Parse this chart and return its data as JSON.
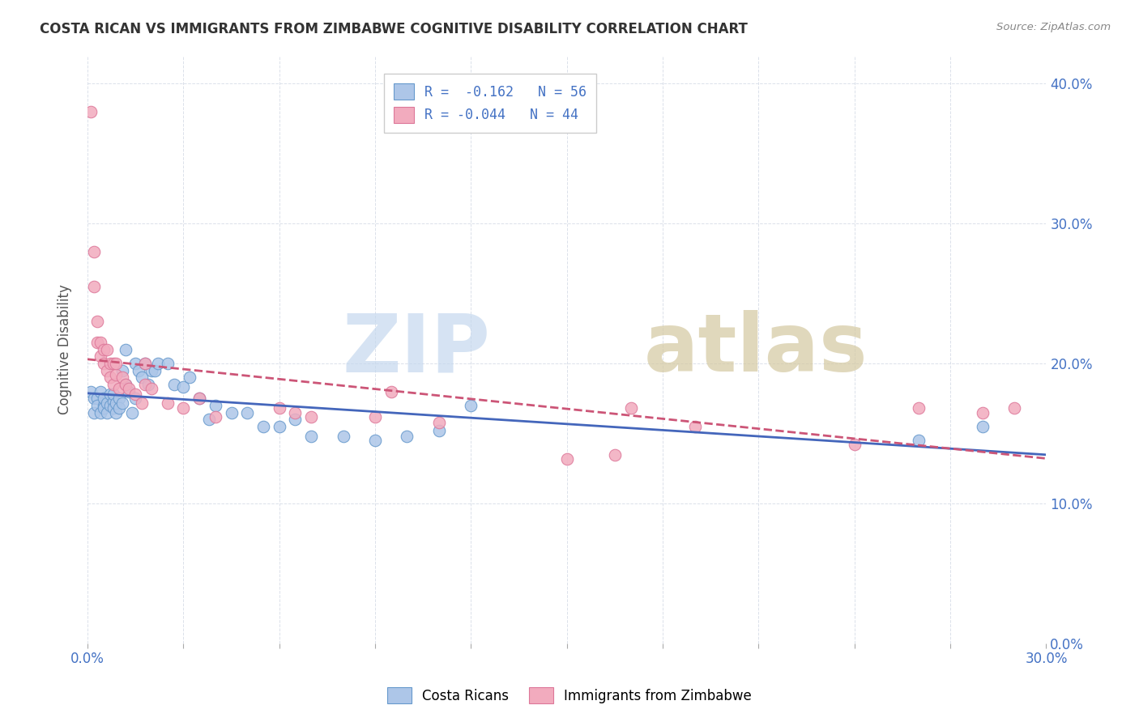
{
  "title": "COSTA RICAN VS IMMIGRANTS FROM ZIMBABWE COGNITIVE DISABILITY CORRELATION CHART",
  "source": "Source: ZipAtlas.com",
  "legend_label1": "Costa Ricans",
  "legend_label2": "Immigrants from Zimbabwe",
  "xlim": [
    0.0,
    0.3
  ],
  "ylim": [
    0.0,
    0.42
  ],
  "color_blue": "#adc6e8",
  "color_pink": "#f2abbe",
  "edge_blue": "#6699cc",
  "edge_pink": "#dd7799",
  "trendline_blue": "#4466bb",
  "trendline_pink": "#cc5577",
  "blue_x": [
    0.001,
    0.002,
    0.002,
    0.003,
    0.003,
    0.004,
    0.004,
    0.005,
    0.005,
    0.005,
    0.006,
    0.006,
    0.007,
    0.007,
    0.008,
    0.008,
    0.008,
    0.009,
    0.009,
    0.01,
    0.01,
    0.011,
    0.011,
    0.012,
    0.012,
    0.013,
    0.014,
    0.015,
    0.015,
    0.016,
    0.017,
    0.018,
    0.019,
    0.02,
    0.021,
    0.022,
    0.025,
    0.027,
    0.03,
    0.032,
    0.035,
    0.038,
    0.04,
    0.045,
    0.05,
    0.055,
    0.06,
    0.065,
    0.07,
    0.08,
    0.09,
    0.1,
    0.11,
    0.12,
    0.28,
    0.26
  ],
  "blue_y": [
    0.18,
    0.175,
    0.165,
    0.175,
    0.17,
    0.18,
    0.165,
    0.17,
    0.175,
    0.168,
    0.172,
    0.165,
    0.178,
    0.17,
    0.173,
    0.168,
    0.178,
    0.165,
    0.172,
    0.175,
    0.168,
    0.195,
    0.172,
    0.185,
    0.21,
    0.18,
    0.165,
    0.2,
    0.175,
    0.195,
    0.19,
    0.2,
    0.185,
    0.195,
    0.195,
    0.2,
    0.2,
    0.185,
    0.183,
    0.19,
    0.175,
    0.16,
    0.17,
    0.165,
    0.165,
    0.155,
    0.155,
    0.16,
    0.148,
    0.148,
    0.145,
    0.148,
    0.152,
    0.17,
    0.155,
    0.145
  ],
  "pink_x": [
    0.001,
    0.002,
    0.002,
    0.003,
    0.003,
    0.004,
    0.004,
    0.005,
    0.005,
    0.006,
    0.006,
    0.007,
    0.007,
    0.008,
    0.008,
    0.009,
    0.009,
    0.01,
    0.011,
    0.012,
    0.013,
    0.015,
    0.017,
    0.018,
    0.018,
    0.02,
    0.025,
    0.03,
    0.035,
    0.04,
    0.06,
    0.065,
    0.07,
    0.09,
    0.095,
    0.11,
    0.15,
    0.165,
    0.17,
    0.19,
    0.24,
    0.26,
    0.28,
    0.29
  ],
  "pink_y": [
    0.38,
    0.28,
    0.255,
    0.23,
    0.215,
    0.205,
    0.215,
    0.21,
    0.2,
    0.195,
    0.21,
    0.2,
    0.19,
    0.2,
    0.185,
    0.192,
    0.2,
    0.182,
    0.19,
    0.185,
    0.182,
    0.178,
    0.172,
    0.185,
    0.2,
    0.182,
    0.172,
    0.168,
    0.175,
    0.162,
    0.168,
    0.165,
    0.162,
    0.162,
    0.18,
    0.158,
    0.132,
    0.135,
    0.168,
    0.155,
    0.142,
    0.168,
    0.165,
    0.168
  ]
}
